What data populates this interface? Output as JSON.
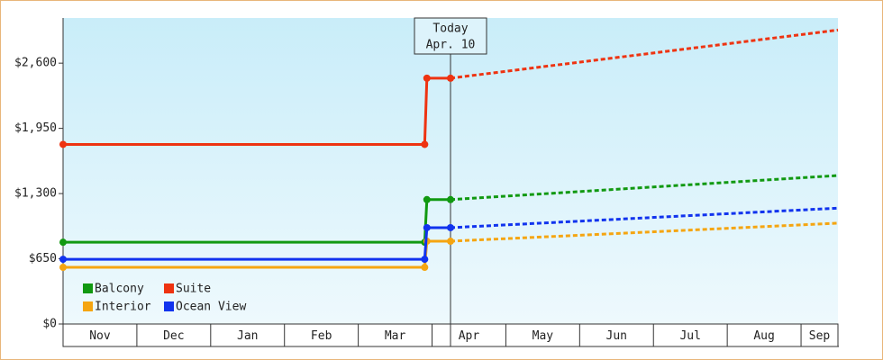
{
  "chart_data": {
    "type": "line",
    "categories": [
      "Nov",
      "Dec",
      "Jan",
      "Feb",
      "Mar",
      "Apr",
      "May",
      "Jun",
      "Jul",
      "Aug",
      "Sep"
    ],
    "x": [
      0,
      4.9,
      4.93,
      5.25,
      10.5
    ],
    "xlim": [
      0,
      10.5
    ],
    "ylim": [
      0,
      3050
    ],
    "yticks": [
      {
        "value": 0,
        "label": "$0"
      },
      {
        "value": 650,
        "label": "$650"
      },
      {
        "value": 1300,
        "label": "$1,300"
      },
      {
        "value": 1950,
        "label": "$1,950"
      },
      {
        "value": 2600,
        "label": "$2,600"
      }
    ],
    "annotation": {
      "x": 5.25,
      "lines": [
        "Today",
        "Apr. 10"
      ]
    },
    "forecast_dashed": true,
    "legend": "lower left",
    "series": [
      {
        "name": "Balcony",
        "color": "#119911",
        "values": [
          815,
          815,
          1240,
          1240,
          1480
        ]
      },
      {
        "name": "Suite",
        "color": "#ee3311",
        "values": [
          1790,
          1790,
          2450,
          2450,
          2930
        ]
      },
      {
        "name": "Interior",
        "color": "#f5a511",
        "values": [
          565,
          565,
          825,
          825,
          1005
        ]
      },
      {
        "name": "Ocean View",
        "color": "#1133ee",
        "values": [
          645,
          645,
          960,
          960,
          1155
        ]
      }
    ]
  }
}
